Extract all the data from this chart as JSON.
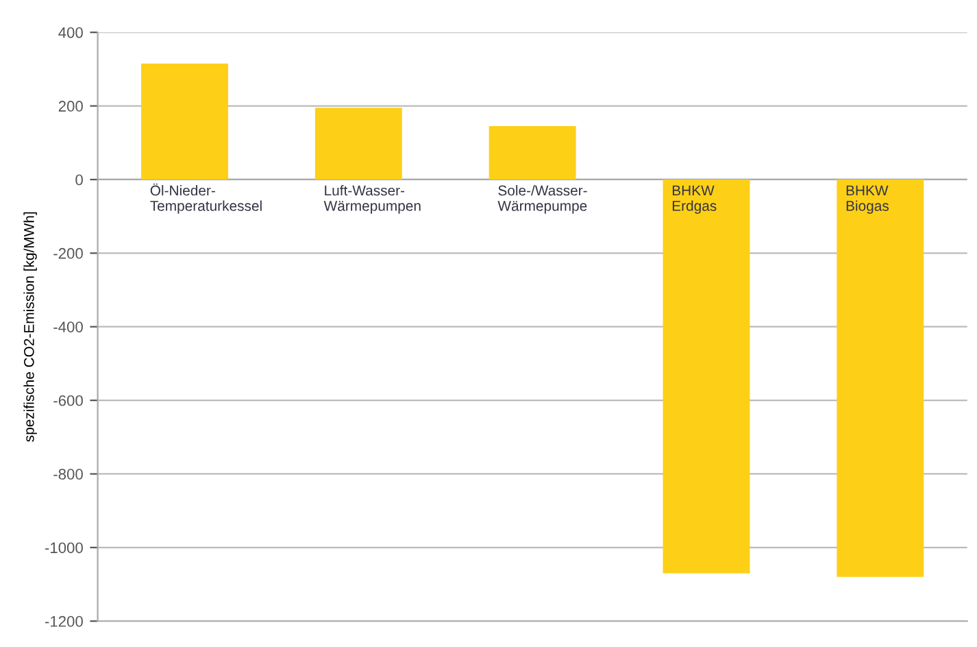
{
  "chart_data": {
    "type": "bar",
    "ylabel": "spezifische CO2-Emission [kg/MWh]",
    "categories": [
      "Öl-Nieder-\nTemperaturkessel",
      "Luft-Wasser-\nWärmepumpen",
      "Sole-/Wasser-\nWärmepumpe",
      "BHKW\nErdgas",
      "BHKW\nBiogas"
    ],
    "values": [
      315,
      195,
      145,
      -1070,
      -1080
    ],
    "color": "#fdd017",
    "ylim": [
      -1200,
      400
    ],
    "yticks": [
      -1200,
      -1000,
      -800,
      -600,
      -400,
      -200,
      0,
      200,
      400
    ],
    "grid": "y",
    "legend": false
  }
}
